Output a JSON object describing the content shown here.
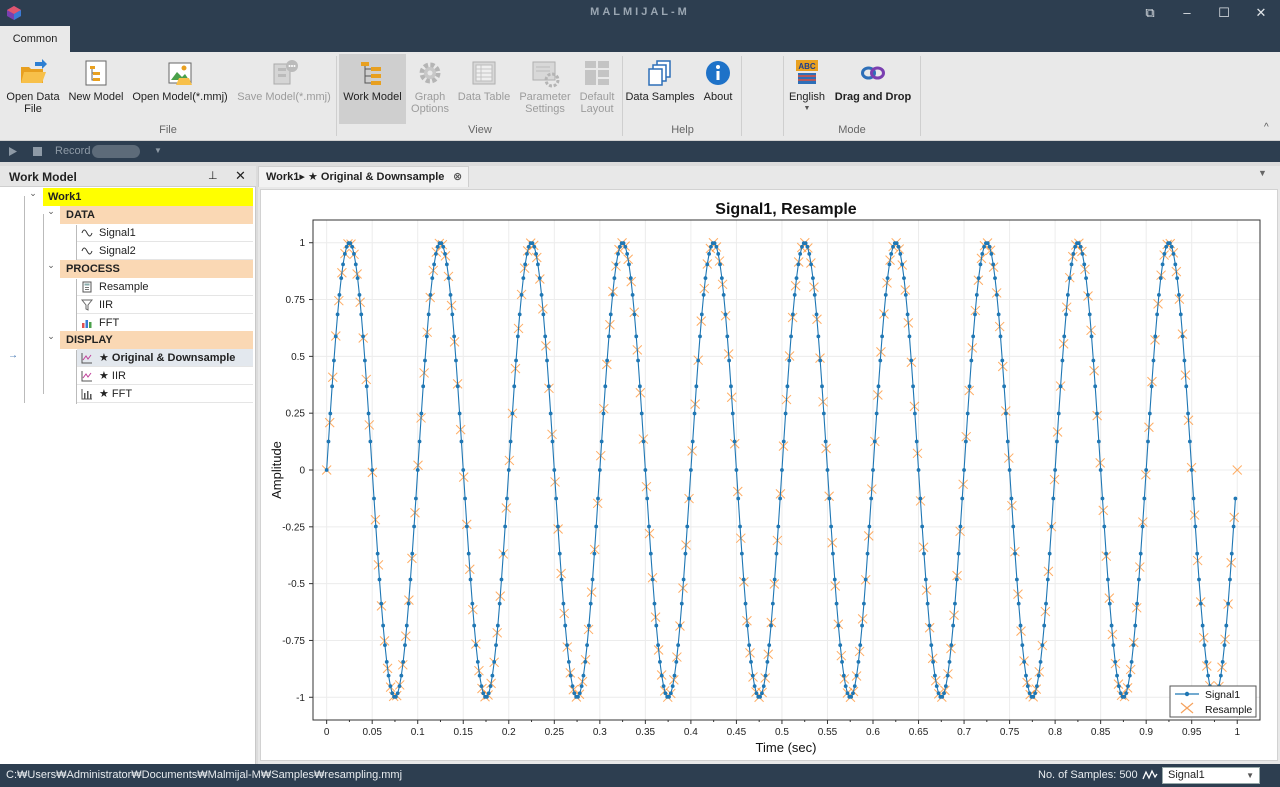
{
  "app": {
    "title": "MALMIJAL-M"
  },
  "window": {
    "restore": "⧉",
    "minimize": "–",
    "maximize": "☐",
    "close": "✕"
  },
  "ribbon": {
    "tabs": [
      {
        "label": "Common"
      }
    ],
    "groups": {
      "file": "File",
      "view": "View",
      "help": "Help",
      "mode": "Mode"
    },
    "buttons": {
      "open_data_file": [
        "Open Data",
        "File"
      ],
      "new_model": "New Model",
      "open_model": "Open Model(*.mmj)",
      "save_model": "Save Model(*.mmj)",
      "work_model": "Work Model",
      "graph_options": [
        "Graph",
        "Options"
      ],
      "data_table": "Data Table",
      "parameter_settings": [
        "Parameter",
        "Settings"
      ],
      "default_layout": [
        "Default",
        "Layout"
      ],
      "data_samples": "Data Samples",
      "about": "About",
      "english": "English",
      "drag_and_drop": "Drag and Drop",
      "abc_badge": "ABC"
    },
    "collapse": "^"
  },
  "record_bar": {
    "label": "Record"
  },
  "work_model_panel": {
    "title": "Work Model",
    "pin": "📌",
    "close": "✕",
    "tree": {
      "root": "Work1",
      "data": {
        "label": "DATA",
        "items": [
          "Signal1",
          "Signal2"
        ]
      },
      "process": {
        "label": "PROCESS",
        "items": [
          "Resample",
          "IIR",
          "FFT"
        ]
      },
      "display": {
        "label": "DISPLAY",
        "items": [
          "★ Original & Downsample",
          "★ IIR",
          "★ FFT"
        ]
      },
      "current_marker": "→"
    }
  },
  "document": {
    "tab_label": "Work1▸ ★ Original & Downsample",
    "tab_close": "⊗"
  },
  "chart_data": {
    "type": "line",
    "title": "Signal1, Resample",
    "xlabel": "Time (sec)",
    "ylabel": "Amplitude",
    "xlim": [
      -0.015,
      1.025
    ],
    "ylim": [
      -1.1,
      1.1
    ],
    "x_ticks": [
      "0",
      "0.05",
      "0.1",
      "0.15",
      "0.2",
      "0.25",
      "0.3",
      "0.35",
      "0.4",
      "0.45",
      "0.5",
      "0.55",
      "0.6",
      "0.65",
      "0.7",
      "0.75",
      "0.8",
      "0.85",
      "0.9",
      "0.95",
      "1"
    ],
    "y_ticks": [
      "1",
      "0.75",
      "0.5",
      "0.25",
      "0",
      "-0.25",
      "-0.5",
      "-0.75",
      "-1"
    ],
    "grid": true,
    "legend_position": "bottom-right",
    "signal": {
      "frequency_hz": 10,
      "amplitude": 1,
      "duration_sec": 1
    },
    "series": [
      {
        "name": "Signal1",
        "marker": "dot",
        "color": "#1f77b4",
        "samples": 500
      },
      {
        "name": "Resample",
        "marker": "x",
        "color": "#ff7f0e",
        "samples": 300
      }
    ]
  },
  "status_bar": {
    "path": "C:₩Users₩Administrator₩Documents₩Malmijal-M₩Samples₩resampling.mmj",
    "samples": "No. of Samples: 500",
    "signal_select": "Signal1"
  }
}
